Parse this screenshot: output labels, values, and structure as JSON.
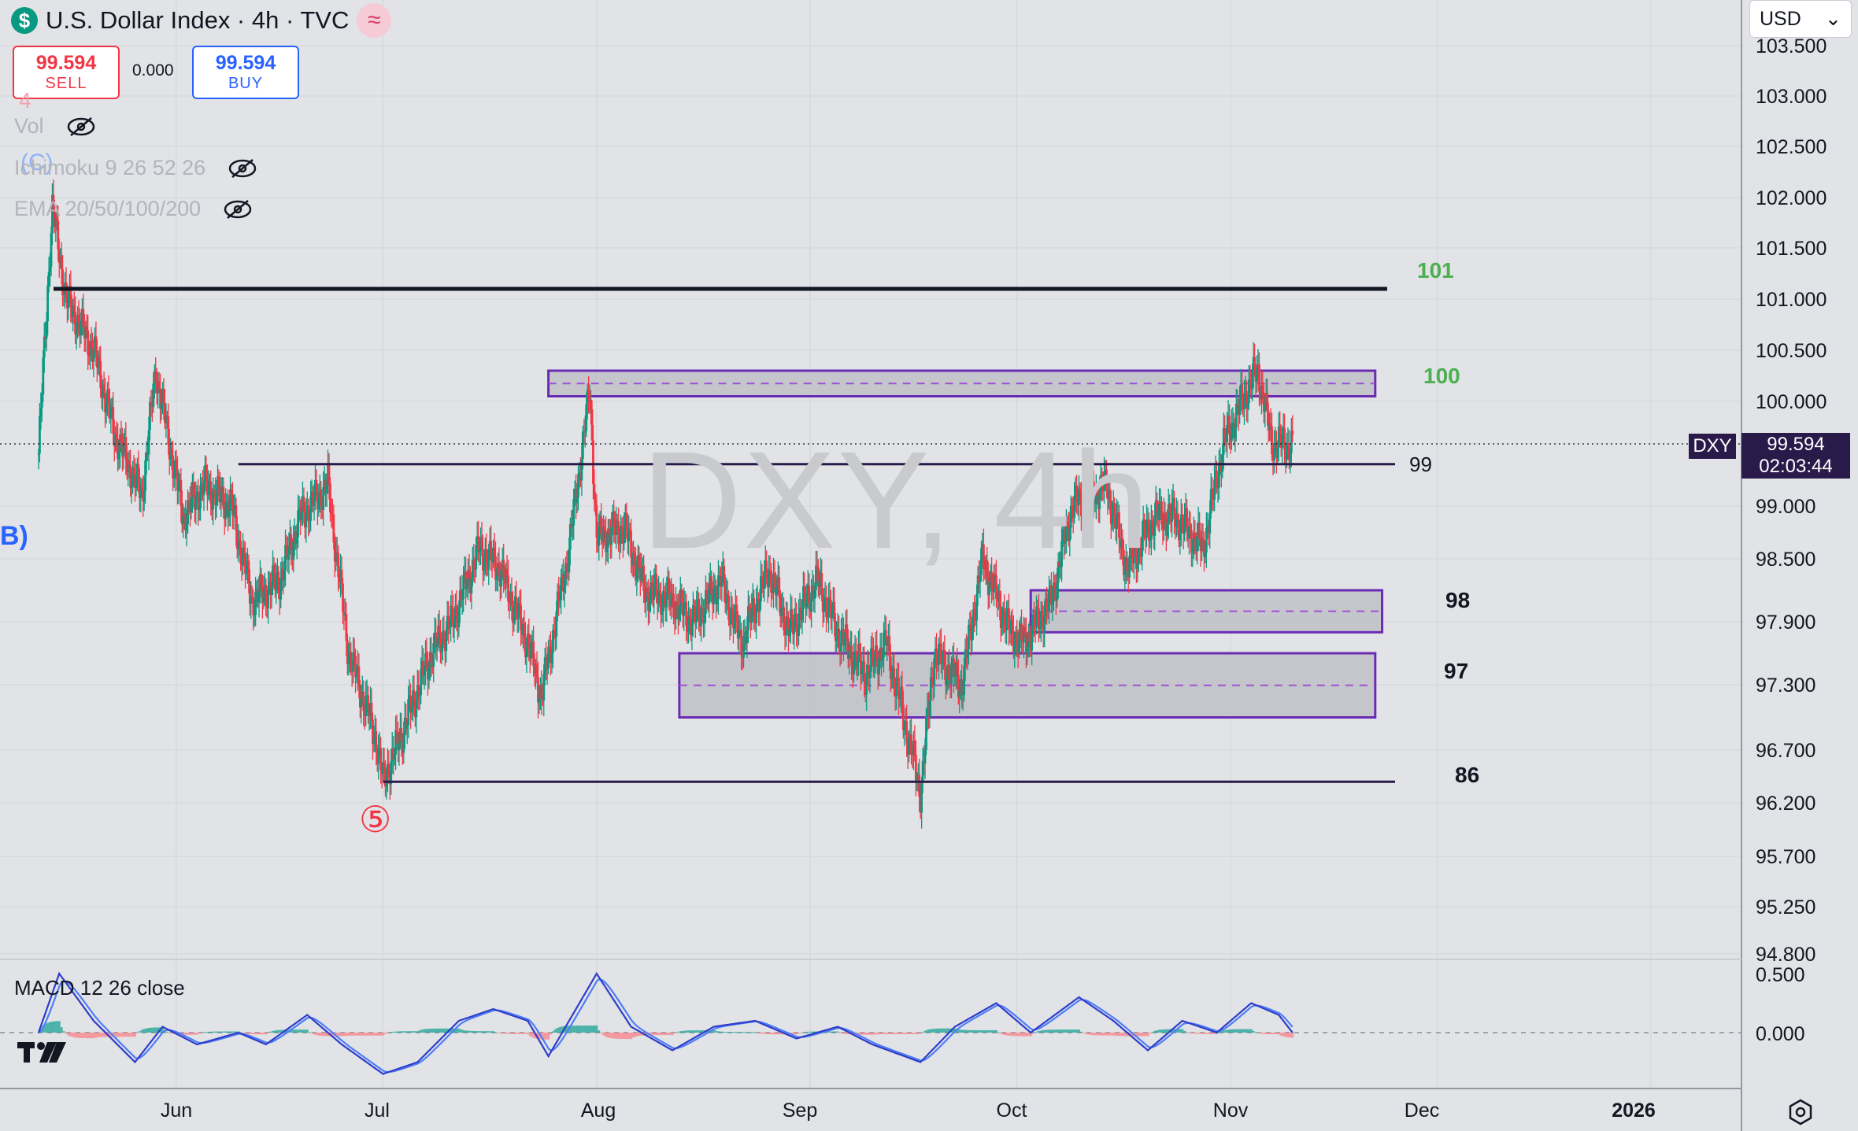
{
  "header": {
    "title": "U.S. Dollar Index · 4h · TVC",
    "currency": "USD"
  },
  "trade": {
    "sell_price": "99.594",
    "sell_label": "SELL",
    "spread": "0.000",
    "buy_price": "99.594",
    "buy_label": "BUY"
  },
  "indicators": {
    "vol": "Vol",
    "ichimoku": "Ichimoku 9 26 52 26",
    "ema": "EMA 20/50/100/200",
    "macd": "MACD 12 26 close"
  },
  "watermark": "DXY, 4h",
  "price_tag": {
    "symbol": "DXY",
    "price": "99.594",
    "countdown": "02:03:44"
  },
  "wave_labels": {
    "four": "4",
    "c": "(C)",
    "b": "B)",
    "five": "⑤"
  },
  "colors": {
    "up": "#089981",
    "down": "#f23645",
    "zone": "#6a2bb4",
    "zone_fill": "#bfc1c6",
    "macd": "#2f3cc9",
    "signal": "#4e7ef5",
    "level_green": "#4caf50"
  },
  "chart_data": {
    "type": "line",
    "symbol": "DXY",
    "interval": "4h",
    "y_ticks": [
      "103.500",
      "103.000",
      "102.500",
      "102.000",
      "101.500",
      "101.000",
      "100.500",
      "100.000",
      "99.000",
      "98.500",
      "97.900",
      "97.300",
      "96.700",
      "96.200",
      "95.700",
      "95.250",
      "94.800"
    ],
    "x_ticks": [
      "Jun",
      "Jul",
      "Aug",
      "Sep",
      "Oct",
      "Nov",
      "Dec",
      "2026"
    ],
    "macd_ticks": [
      "0.500",
      "0.000"
    ],
    "last_price": 99.594,
    "price_path": [
      {
        "date": "2025-05-12",
        "y": 99.5
      },
      {
        "date": "2025-05-14",
        "y": 101.9
      },
      {
        "date": "2025-05-16",
        "y": 101.0
      },
      {
        "date": "2025-05-20",
        "y": 100.5
      },
      {
        "date": "2025-05-23",
        "y": 99.7
      },
      {
        "date": "2025-05-27",
        "y": 99.1
      },
      {
        "date": "2025-05-29",
        "y": 100.3
      },
      {
        "date": "2025-06-02",
        "y": 98.9
      },
      {
        "date": "2025-06-05",
        "y": 99.2
      },
      {
        "date": "2025-06-09",
        "y": 99.0
      },
      {
        "date": "2025-06-12",
        "y": 98.1
      },
      {
        "date": "2025-06-16",
        "y": 98.3
      },
      {
        "date": "2025-06-19",
        "y": 98.9
      },
      {
        "date": "2025-06-23",
        "y": 99.2
      },
      {
        "date": "2025-06-26",
        "y": 97.6
      },
      {
        "date": "2025-06-30",
        "y": 96.8
      },
      {
        "date": "2025-07-01",
        "y": 96.4
      },
      {
        "date": "2025-07-04",
        "y": 96.9
      },
      {
        "date": "2025-07-08",
        "y": 97.6
      },
      {
        "date": "2025-07-11",
        "y": 97.9
      },
      {
        "date": "2025-07-15",
        "y": 98.6
      },
      {
        "date": "2025-07-18",
        "y": 98.4
      },
      {
        "date": "2025-07-22",
        "y": 97.7
      },
      {
        "date": "2025-07-24",
        "y": 97.2
      },
      {
        "date": "2025-07-28",
        "y": 98.6
      },
      {
        "date": "2025-07-31",
        "y": 100.1
      },
      {
        "date": "2025-08-01",
        "y": 98.7
      },
      {
        "date": "2025-08-05",
        "y": 98.8
      },
      {
        "date": "2025-08-08",
        "y": 98.2
      },
      {
        "date": "2025-08-12",
        "y": 98.1
      },
      {
        "date": "2025-08-15",
        "y": 97.9
      },
      {
        "date": "2025-08-19",
        "y": 98.3
      },
      {
        "date": "2025-08-22",
        "y": 97.7
      },
      {
        "date": "2025-08-26",
        "y": 98.4
      },
      {
        "date": "2025-08-29",
        "y": 97.8
      },
      {
        "date": "2025-09-02",
        "y": 98.3
      },
      {
        "date": "2025-09-05",
        "y": 97.8
      },
      {
        "date": "2025-09-09",
        "y": 97.4
      },
      {
        "date": "2025-09-12",
        "y": 97.7
      },
      {
        "date": "2025-09-16",
        "y": 96.6
      },
      {
        "date": "2025-09-17",
        "y": 96.3
      },
      {
        "date": "2025-09-19",
        "y": 97.6
      },
      {
        "date": "2025-09-23",
        "y": 97.3
      },
      {
        "date": "2025-09-26",
        "y": 98.5
      },
      {
        "date": "2025-09-30",
        "y": 97.8
      },
      {
        "date": "2025-10-02",
        "y": 97.7
      },
      {
        "date": "2025-10-06",
        "y": 98.1
      },
      {
        "date": "2025-10-09",
        "y": 99.0
      },
      {
        "date": "2025-10-14",
        "y": 99.2
      },
      {
        "date": "2025-10-17",
        "y": 98.4
      },
      {
        "date": "2025-10-21",
        "y": 98.9
      },
      {
        "date": "2025-10-24",
        "y": 98.9
      },
      {
        "date": "2025-10-28",
        "y": 98.6
      },
      {
        "date": "2025-10-31",
        "y": 99.6
      },
      {
        "date": "2025-11-04",
        "y": 100.2
      },
      {
        "date": "2025-11-05",
        "y": 100.3
      },
      {
        "date": "2025-11-07",
        "y": 99.6
      },
      {
        "date": "2025-11-10",
        "y": 99.594
      }
    ],
    "macd_path": [
      {
        "date": "2025-05-12",
        "y": 0.0
      },
      {
        "date": "2025-05-15",
        "y": 0.5
      },
      {
        "date": "2025-05-20",
        "y": 0.1
      },
      {
        "date": "2025-05-26",
        "y": -0.25
      },
      {
        "date": "2025-05-30",
        "y": 0.05
      },
      {
        "date": "2025-06-04",
        "y": -0.1
      },
      {
        "date": "2025-06-10",
        "y": 0.0
      },
      {
        "date": "2025-06-14",
        "y": -0.1
      },
      {
        "date": "2025-06-20",
        "y": 0.15
      },
      {
        "date": "2025-06-25",
        "y": -0.1
      },
      {
        "date": "2025-07-01",
        "y": -0.35
      },
      {
        "date": "2025-07-06",
        "y": -0.25
      },
      {
        "date": "2025-07-12",
        "y": 0.1
      },
      {
        "date": "2025-07-17",
        "y": 0.2
      },
      {
        "date": "2025-07-22",
        "y": 0.1
      },
      {
        "date": "2025-07-25",
        "y": -0.2
      },
      {
        "date": "2025-08-01",
        "y": 0.5
      },
      {
        "date": "2025-08-06",
        "y": 0.05
      },
      {
        "date": "2025-08-12",
        "y": -0.15
      },
      {
        "date": "2025-08-18",
        "y": 0.05
      },
      {
        "date": "2025-08-24",
        "y": 0.1
      },
      {
        "date": "2025-08-30",
        "y": -0.05
      },
      {
        "date": "2025-09-05",
        "y": 0.05
      },
      {
        "date": "2025-09-10",
        "y": -0.1
      },
      {
        "date": "2025-09-17",
        "y": -0.25
      },
      {
        "date": "2025-09-22",
        "y": 0.05
      },
      {
        "date": "2025-09-28",
        "y": 0.25
      },
      {
        "date": "2025-10-03",
        "y": 0.0
      },
      {
        "date": "2025-10-10",
        "y": 0.3
      },
      {
        "date": "2025-10-15",
        "y": 0.1
      },
      {
        "date": "2025-10-20",
        "y": -0.15
      },
      {
        "date": "2025-10-25",
        "y": 0.1
      },
      {
        "date": "2025-10-30",
        "y": 0.0
      },
      {
        "date": "2025-11-04",
        "y": 0.25
      },
      {
        "date": "2025-11-08",
        "y": 0.15
      },
      {
        "date": "2025-11-10",
        "y": 0.0
      }
    ],
    "levels": [
      {
        "label": "101",
        "y": 101.1,
        "color": "green"
      },
      {
        "label": "99",
        "y": 99.4,
        "color": "black"
      },
      {
        "label": "86",
        "y": 96.4,
        "color": "black"
      }
    ],
    "zones": [
      {
        "label": "100",
        "from": "2025-07-25",
        "to": "2025-11-22",
        "top": 100.3,
        "bottom": 100.05
      },
      {
        "label": "98",
        "from": "2025-10-03",
        "to": "2025-11-23",
        "top": 98.2,
        "bottom": 97.8
      },
      {
        "label": "97",
        "from": "2025-08-13",
        "to": "2025-11-22",
        "top": 97.6,
        "bottom": 97.0
      }
    ]
  }
}
